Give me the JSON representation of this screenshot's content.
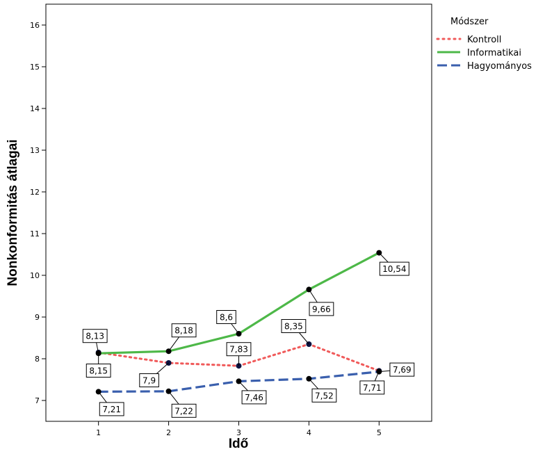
{
  "chart_data": {
    "type": "line",
    "title": "",
    "xlabel": "Idő",
    "ylabel": "Nonkonformitás átlagai",
    "x": [
      1,
      2,
      3,
      4,
      5
    ],
    "x_ticks": [
      "1",
      "2",
      "3",
      "4",
      "5"
    ],
    "y_ticks": [
      "7",
      "8",
      "9",
      "10",
      "11",
      "12",
      "13",
      "14",
      "15",
      "16"
    ],
    "xlim": [
      0.25,
      5.75
    ],
    "ylim": [
      6.5,
      16.5
    ],
    "grid": false,
    "legend_title": "Módszer",
    "legend_position": "right",
    "series": [
      {
        "name": "Kontroll",
        "values": [
          8.15,
          7.9,
          7.83,
          8.35,
          7.71
        ],
        "labels": [
          "8,15",
          "7,9",
          "7,83",
          "8,35",
          "7,71"
        ],
        "color": "#f05a5a",
        "style": "dotted"
      },
      {
        "name": "Informatikai",
        "values": [
          8.13,
          8.18,
          8.6,
          9.66,
          10.54
        ],
        "labels": [
          "8,13",
          "8,18",
          "8,6",
          "9,66",
          "10,54"
        ],
        "color": "#4db848",
        "style": "solid"
      },
      {
        "name": "Hagyományos",
        "values": [
          7.21,
          7.22,
          7.46,
          7.52,
          7.69
        ],
        "labels": [
          "7,21",
          "7,22",
          "7,46",
          "7,52",
          "7,69"
        ],
        "color": "#3a5fad",
        "style": "dashed"
      }
    ]
  }
}
